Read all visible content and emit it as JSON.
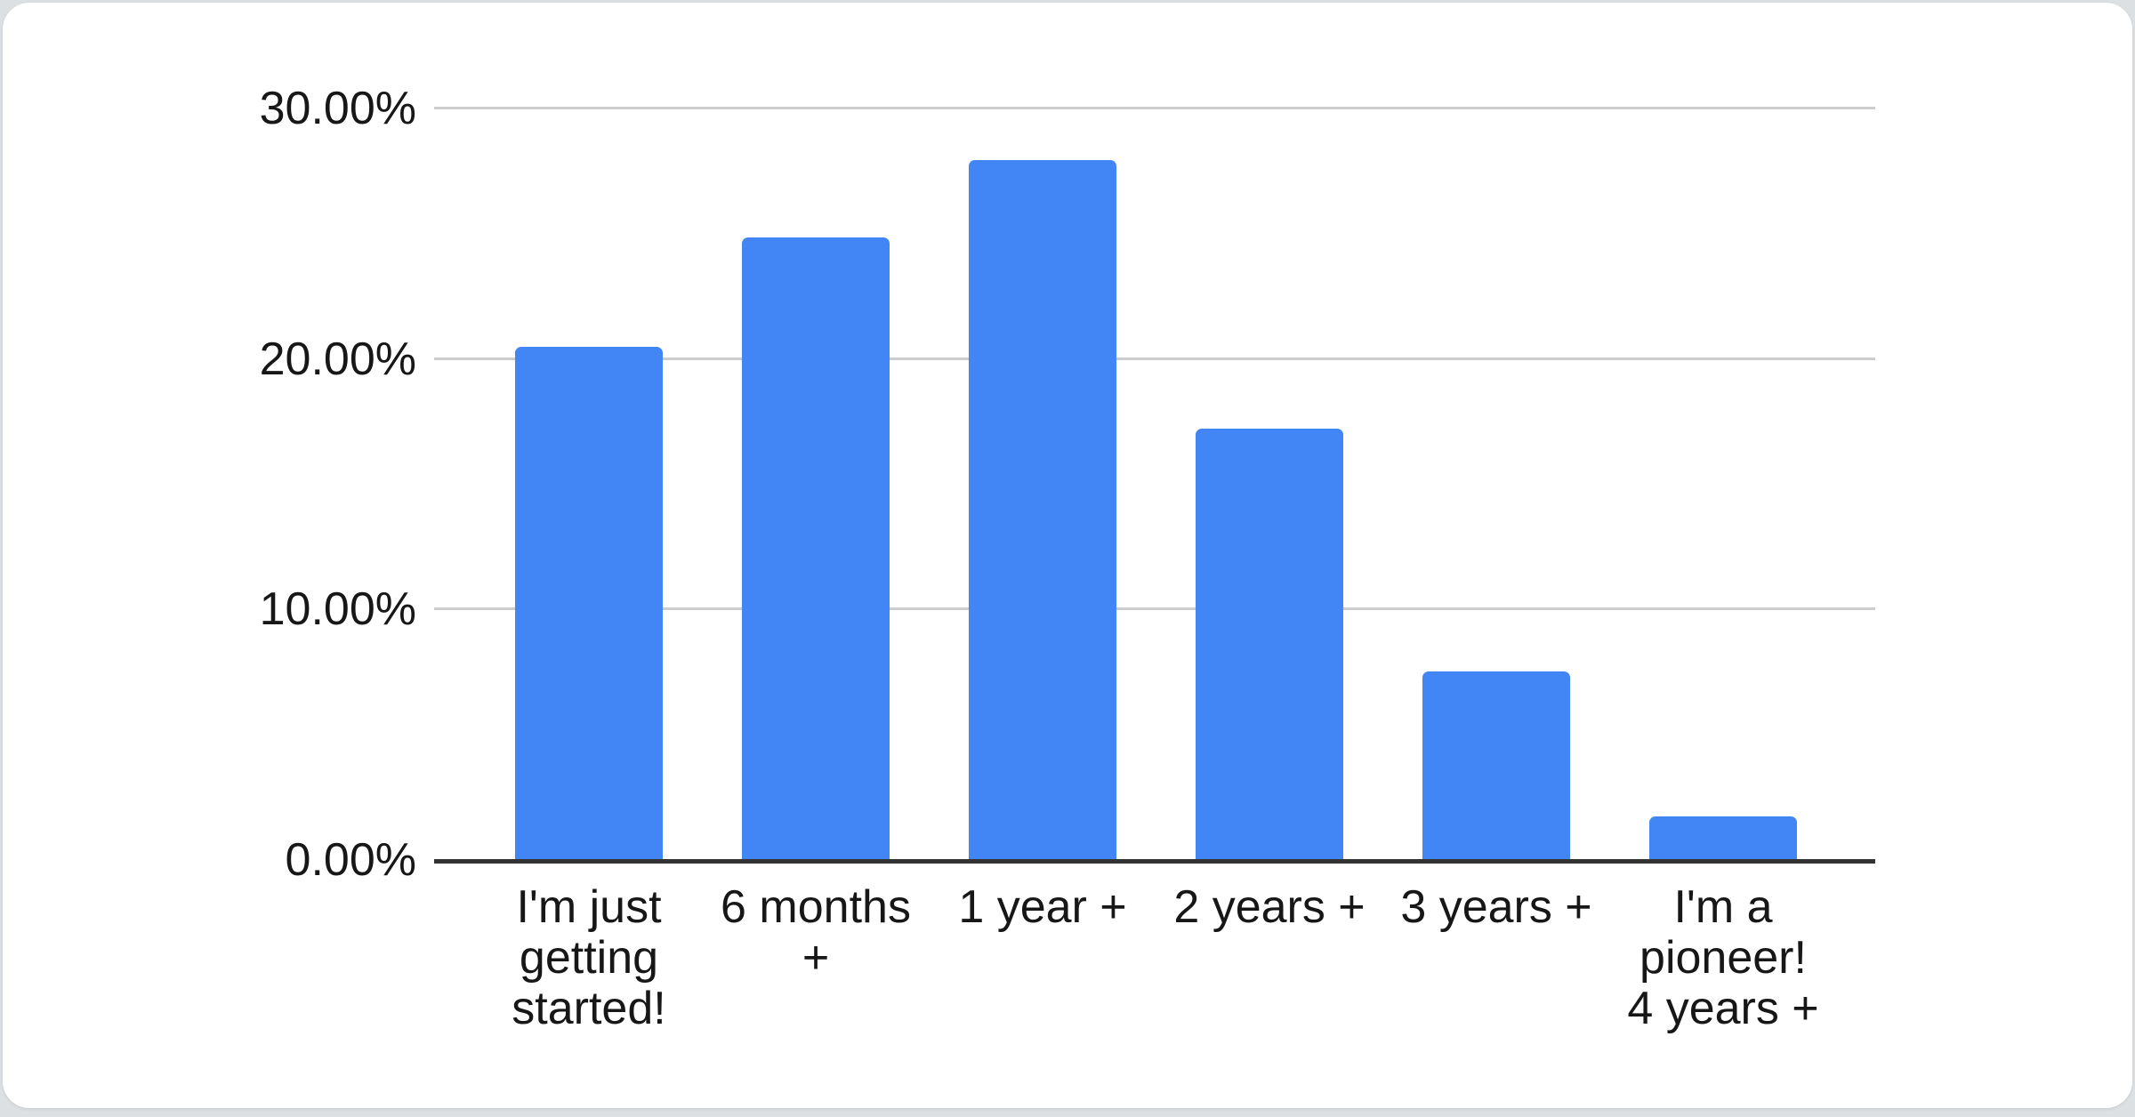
{
  "page": {
    "background": "#dce0e3"
  },
  "card": {
    "background": "#ffffff"
  },
  "chart_data": {
    "type": "bar",
    "title": "",
    "xlabel": "",
    "ylabel": "",
    "categories": [
      "I'm just getting started!",
      "6 months +",
      "1 year +",
      "2 years +",
      "3 years +",
      "I'm a pioneer! 4 years +"
    ],
    "values": [
      20.45,
      24.8,
      27.9,
      17.2,
      7.5,
      1.7
    ],
    "value_unit": "percent",
    "ylim": [
      0,
      30
    ],
    "y_ticks": [
      {
        "value": 0,
        "label": "0.00%"
      },
      {
        "value": 10,
        "label": "10.00%"
      },
      {
        "value": 20,
        "label": "20.00%"
      },
      {
        "value": 30,
        "label": "30.00%"
      }
    ],
    "grid": true,
    "legend": "none",
    "colors": {
      "bar": "#4285F4",
      "gridline": "#cccccc",
      "axis_line": "#333333",
      "label_text": "#171717"
    }
  }
}
